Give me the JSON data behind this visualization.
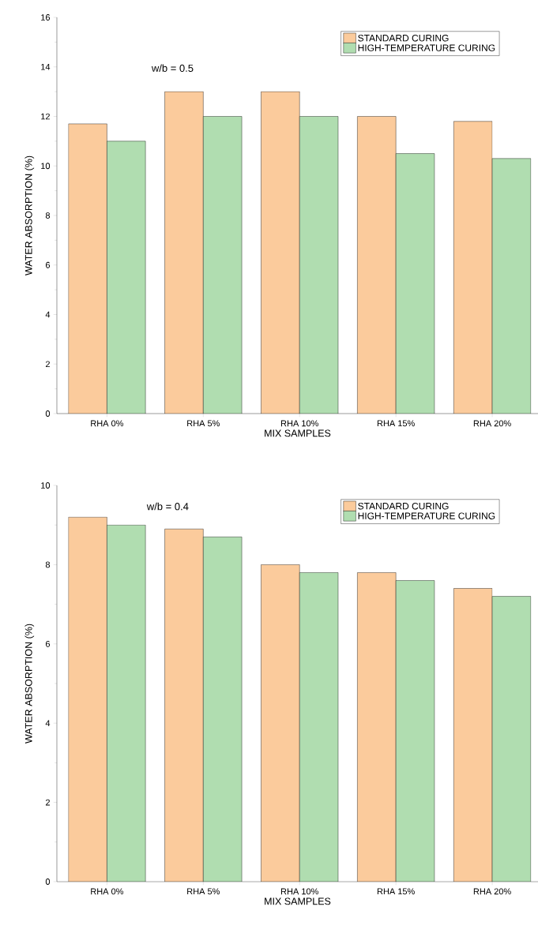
{
  "chart_data": [
    {
      "type": "bar",
      "categories": [
        "RHA 0%",
        "RHA 5%",
        "RHA 10%",
        "RHA 15%",
        "RHA 20%"
      ],
      "xlabel": "MIX SAMPLES",
      "ylabel": "WATER ABSORPTION (%)",
      "annotations": [
        "w/b = 0.5"
      ],
      "ylim": [
        0,
        16
      ],
      "yticks": [
        0,
        2,
        4,
        6,
        8,
        10,
        12,
        14,
        16
      ],
      "legend": "top right",
      "series": [
        {
          "name": "STANDARD CURING",
          "color": "#fbcb9c",
          "values": [
            11.7,
            13.0,
            13.0,
            12.0,
            11.8
          ]
        },
        {
          "name": "HIGH-TEMPERATURE CURING",
          "color": "#b0ddb0",
          "values": [
            11.0,
            12.0,
            12.0,
            10.5,
            10.3
          ]
        }
      ]
    },
    {
      "type": "bar",
      "categories": [
        "RHA 0%",
        "RHA 5%",
        "RHA 10%",
        "RHA 15%",
        "RHA 20%"
      ],
      "xlabel": "MIX SAMPLES",
      "ylabel": "WATER ABSORPTION (%)",
      "annotations": [
        "w/b = 0.4"
      ],
      "ylim": [
        0,
        10
      ],
      "yticks": [
        0,
        2,
        4,
        6,
        8,
        10
      ],
      "legend": "top right",
      "series": [
        {
          "name": "STANDARD CURING",
          "color": "#fbcb9c",
          "values": [
            9.2,
            8.9,
            8.0,
            7.8,
            7.4
          ]
        },
        {
          "name": "HIGH-TEMPERATURE CURING",
          "color": "#b0ddb0",
          "values": [
            9.0,
            8.7,
            7.8,
            7.6,
            7.2
          ]
        }
      ]
    }
  ]
}
